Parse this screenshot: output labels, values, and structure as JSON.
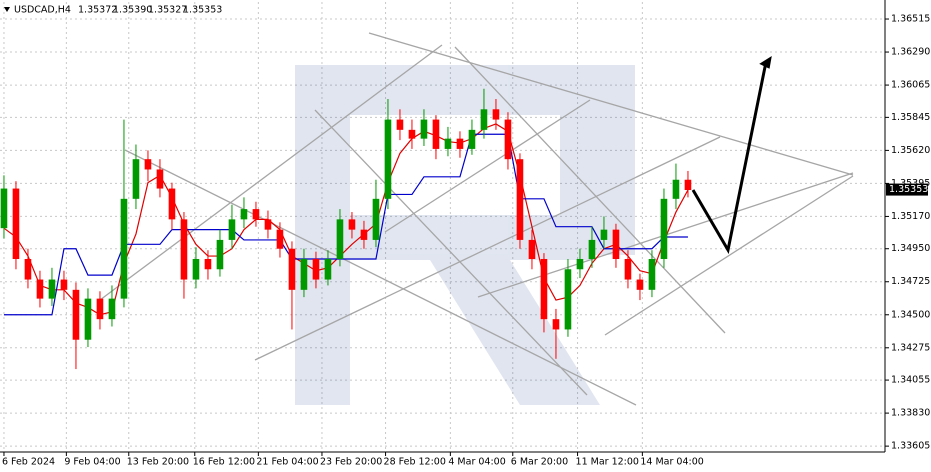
{
  "chart_data": {
    "type": "candlestick",
    "symbol": "USDCAD,H4",
    "quote": [
      "1.35372",
      "1.35390",
      "1.35327"
    ],
    "last_price": 1.35353,
    "up_color": "#009900",
    "down_color": "#ff0000",
    "grid": true,
    "ylim": [
      1.33565,
      1.36631
    ],
    "yticks": [
      1.36515,
      {
        "value": 1.3629,
        "label": "1.36290"
      },
      1.36065,
      1.35845,
      {
        "value": 1.3562,
        "label": "1.35620"
      },
      1.35395,
      {
        "value": 1.3517,
        "label": "1.35170"
      },
      {
        "value": 1.3495,
        "label": "1.34950"
      },
      1.34725,
      {
        "value": 1.345,
        "label": "1.34500"
      },
      1.34275,
      1.34055,
      {
        "value": 1.3383,
        "label": "1.33830"
      },
      {
        "value": 1.33605,
        "label": "1.33605"
      }
    ],
    "xlim": [
      -0.33,
      73.42
    ],
    "xticks": [
      {
        "value": 0,
        "label": "6 Feb 2024"
      },
      {
        "value": 5.2,
        "label": "9 Feb 04:00"
      },
      {
        "value": 10.4,
        "label": "13 Feb 20:00"
      },
      {
        "value": 15.9,
        "label": "16 Feb 12:00"
      },
      {
        "value": 21.2,
        "label": "21 Feb 04:00"
      },
      {
        "value": 26.5,
        "label": "23 Feb 20:00"
      },
      {
        "value": 31.8,
        "label": "28 Feb 12:00"
      },
      {
        "value": 37.2,
        "label": "4 Mar 04:00"
      },
      {
        "value": 42.4,
        "label": "6 Mar 20:00"
      },
      {
        "value": 47.8,
        "label": "11 Mar 12:00"
      },
      {
        "value": 53.2,
        "label": "14 Mar 04:00"
      }
    ],
    "open": [
      1.3509,
      1.3536,
      1.3488,
      1.3474,
      1.3461,
      1.3474,
      1.3467,
      1.3433,
      1.3461,
      1.3447,
      1.3461,
      1.3529,
      1.3556,
      1.3549,
      1.3536,
      1.3515,
      1.3474,
      1.3488,
      1.3481,
      1.3501,
      1.3515,
      1.3522,
      1.3515,
      1.3508,
      1.3495,
      1.3467,
      1.3488,
      1.3474,
      1.3488,
      1.3515,
      1.3508,
      1.3501,
      1.3529,
      1.3583,
      1.3576,
      1.357,
      1.3583,
      1.3563,
      1.357,
      1.3563,
      1.3576,
      1.359,
      1.3583,
      1.3556,
      1.3501,
      1.3488,
      1.3447,
      1.344,
      1.3481,
      1.3488,
      1.3501,
      1.3508,
      1.3488,
      1.3474,
      1.3467,
      1.3488,
      1.3529,
      1.3542
    ],
    "high": [
      1.3545,
      1.3541,
      1.3495,
      1.348,
      1.3482,
      1.348,
      1.3472,
      1.3468,
      1.3466,
      1.347,
      1.3583,
      1.3566,
      1.3562,
      1.3556,
      1.354,
      1.352,
      1.3496,
      1.3494,
      1.3508,
      1.3525,
      1.353,
      1.3527,
      1.3521,
      1.3513,
      1.35,
      1.3495,
      1.3493,
      1.3494,
      1.3522,
      1.352,
      1.3514,
      1.3542,
      1.3597,
      1.359,
      1.3583,
      1.359,
      1.3586,
      1.3578,
      1.3575,
      1.3583,
      1.3604,
      1.3597,
      1.3588,
      1.356,
      1.3508,
      1.3492,
      1.3454,
      1.3488,
      1.3495,
      1.351,
      1.3517,
      1.3512,
      1.3494,
      1.3478,
      1.3494,
      1.3536,
      1.3553,
      1.3548
    ],
    "low": [
      1.3502,
      1.3481,
      1.3468,
      1.3455,
      1.3456,
      1.346,
      1.3413,
      1.3428,
      1.344,
      1.3442,
      1.3455,
      1.3522,
      1.3541,
      1.353,
      1.3508,
      1.3461,
      1.3468,
      1.3474,
      1.3476,
      1.3495,
      1.3509,
      1.351,
      1.3502,
      1.3489,
      1.344,
      1.3462,
      1.3468,
      1.347,
      1.3483,
      1.3502,
      1.3495,
      1.3496,
      1.3522,
      1.3569,
      1.3563,
      1.3565,
      1.3556,
      1.3558,
      1.3557,
      1.3559,
      1.357,
      1.3576,
      1.3549,
      1.3495,
      1.3481,
      1.3438,
      1.342,
      1.3435,
      1.3475,
      1.3482,
      1.3495,
      1.3482,
      1.3468,
      1.346,
      1.3462,
      1.3482,
      1.3522,
      1.353
    ],
    "close": [
      1.3536,
      1.3488,
      1.3474,
      1.3461,
      1.3474,
      1.3467,
      1.3433,
      1.3461,
      1.3447,
      1.3461,
      1.3529,
      1.3556,
      1.3549,
      1.3536,
      1.3515,
      1.3474,
      1.3488,
      1.3481,
      1.3501,
      1.3515,
      1.3522,
      1.3515,
      1.3508,
      1.3495,
      1.3467,
      1.3488,
      1.3474,
      1.3488,
      1.3515,
      1.3508,
      1.3501,
      1.3529,
      1.3583,
      1.3576,
      1.357,
      1.3583,
      1.3563,
      1.357,
      1.3563,
      1.3576,
      1.359,
      1.3583,
      1.3556,
      1.3501,
      1.3488,
      1.3447,
      1.344,
      1.3481,
      1.3488,
      1.3501,
      1.3508,
      1.3488,
      1.3474,
      1.3467,
      1.3488,
      1.3529,
      1.3542,
      1.3535
    ],
    "series": [
      {
        "color": "#e00000",
        "values": [
          1.3509,
          1.3503,
          1.349,
          1.347,
          1.3467,
          1.3467,
          1.3458,
          1.3455,
          1.345,
          1.3452,
          1.3485,
          1.3505,
          1.354,
          1.3545,
          1.353,
          1.3512,
          1.3498,
          1.349,
          1.349,
          1.3495,
          1.3508,
          1.3515,
          1.3515,
          1.3508,
          1.349,
          1.3485,
          1.348,
          1.3482,
          1.349,
          1.3498,
          1.3505,
          1.3512,
          1.354,
          1.356,
          1.357,
          1.3575,
          1.3572,
          1.3568,
          1.3567,
          1.357,
          1.3577,
          1.358,
          1.3575,
          1.3545,
          1.351,
          1.3475,
          1.346,
          1.3462,
          1.347,
          1.3485,
          1.3495,
          1.3498,
          1.349,
          1.348,
          1.3478,
          1.35,
          1.352,
          1.3535
        ]
      },
      {
        "color": "#0000cc",
        "values": [
          1.345,
          1.345,
          1.345,
          1.345,
          1.345,
          1.3495,
          1.3495,
          1.3477,
          1.3477,
          1.3477,
          1.3498,
          1.3498,
          1.3498,
          1.3498,
          1.3508,
          1.3508,
          1.3508,
          1.3508,
          1.3508,
          1.3508,
          1.3501,
          1.3501,
          1.3501,
          1.3501,
          1.3488,
          1.3488,
          1.3488,
          1.3488,
          1.3488,
          1.3488,
          1.3488,
          1.3488,
          1.3532,
          1.3532,
          1.3532,
          1.3544,
          1.3544,
          1.3544,
          1.3544,
          1.3573,
          1.3573,
          1.3573,
          1.3573,
          1.3529,
          1.3529,
          1.3529,
          1.351,
          1.351,
          1.351,
          1.351,
          1.3495,
          1.3495,
          1.3495,
          1.3495,
          1.3495,
          1.3503,
          1.3503,
          1.3503
        ]
      }
    ]
  }
}
